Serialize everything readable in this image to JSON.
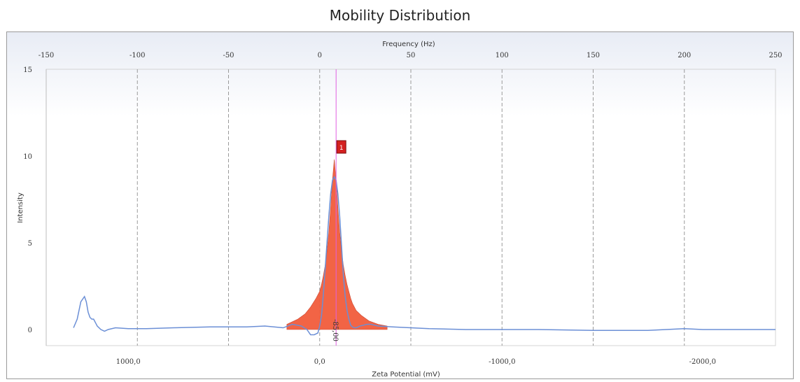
{
  "chart_data": {
    "type": "area",
    "title": "Mobility Distribution",
    "xlabel": "Zeta Potential (mV)",
    "x2label": "Frequency (Hz)",
    "ylabel": "Intensity",
    "ylim": [
      0,
      15
    ],
    "yticks": [
      0,
      5,
      10,
      15
    ],
    "xticks_bottom": [
      "1000,0",
      "0,0",
      "-1000,0",
      "-2000,0"
    ],
    "xticks_top": [
      -150,
      -100,
      -50,
      0,
      50,
      100,
      150,
      200,
      250
    ],
    "xlim_frequency": [
      -150,
      250
    ],
    "grid": "vertical dashed",
    "peak_label": "-85,00",
    "peak_marker": "1",
    "series": [
      {
        "color": "#6b8fd6",
        "x": [
          -135,
          -133,
          -131,
          -129,
          -128,
          -127,
          -126,
          -125,
          -124,
          -123,
          -122,
          -120,
          -118,
          -116,
          -112,
          -105,
          -95,
          -80,
          -60,
          -40,
          -30,
          -20,
          -15,
          -10,
          -7,
          -5,
          -3,
          -1,
          0,
          1,
          2,
          3,
          4,
          5,
          6,
          7,
          8,
          9,
          10,
          11,
          12,
          13,
          14,
          15,
          16,
          17,
          18,
          19,
          20,
          22,
          24,
          26,
          28,
          32,
          40,
          60,
          80,
          100,
          120,
          150,
          180,
          200,
          210,
          230,
          250
        ],
        "y": [
          0.1,
          0.6,
          1.6,
          1.9,
          1.6,
          1.0,
          0.7,
          0.6,
          0.6,
          0.4,
          0.2,
          0.0,
          -0.1,
          0.0,
          0.1,
          0.05,
          0.05,
          0.1,
          0.15,
          0.15,
          0.2,
          0.1,
          0.3,
          0.2,
          0.0,
          -0.3,
          -0.3,
          -0.2,
          0.2,
          0.8,
          2.0,
          3.5,
          5.0,
          6.5,
          7.8,
          8.6,
          8.8,
          8.6,
          7.8,
          6.5,
          4.8,
          3.1,
          1.9,
          1.1,
          0.6,
          0.25,
          0.15,
          0.1,
          0.1,
          0.2,
          0.25,
          0.3,
          0.3,
          0.2,
          0.15,
          0.05,
          0.0,
          0.0,
          0.0,
          -0.05,
          -0.05,
          0.05,
          0.0,
          0.0,
          0.0
        ]
      },
      {
        "color": "#f25c3c",
        "x": [
          -18,
          -12,
          -8,
          -5,
          -2,
          0,
          1,
          2,
          3,
          4,
          5,
          6,
          7,
          8,
          9,
          10,
          11,
          12,
          13,
          14,
          15,
          16,
          17,
          18,
          20,
          23,
          27,
          32,
          37
        ],
        "y": [
          0.3,
          0.6,
          0.9,
          1.3,
          1.8,
          2.2,
          2.6,
          3.1,
          3.7,
          4.5,
          5.6,
          7.0,
          8.6,
          9.8,
          8.6,
          7.0,
          5.6,
          4.5,
          3.7,
          3.1,
          2.6,
          2.2,
          1.8,
          1.5,
          1.1,
          0.8,
          0.5,
          0.3,
          0.2
        ]
      }
    ]
  }
}
